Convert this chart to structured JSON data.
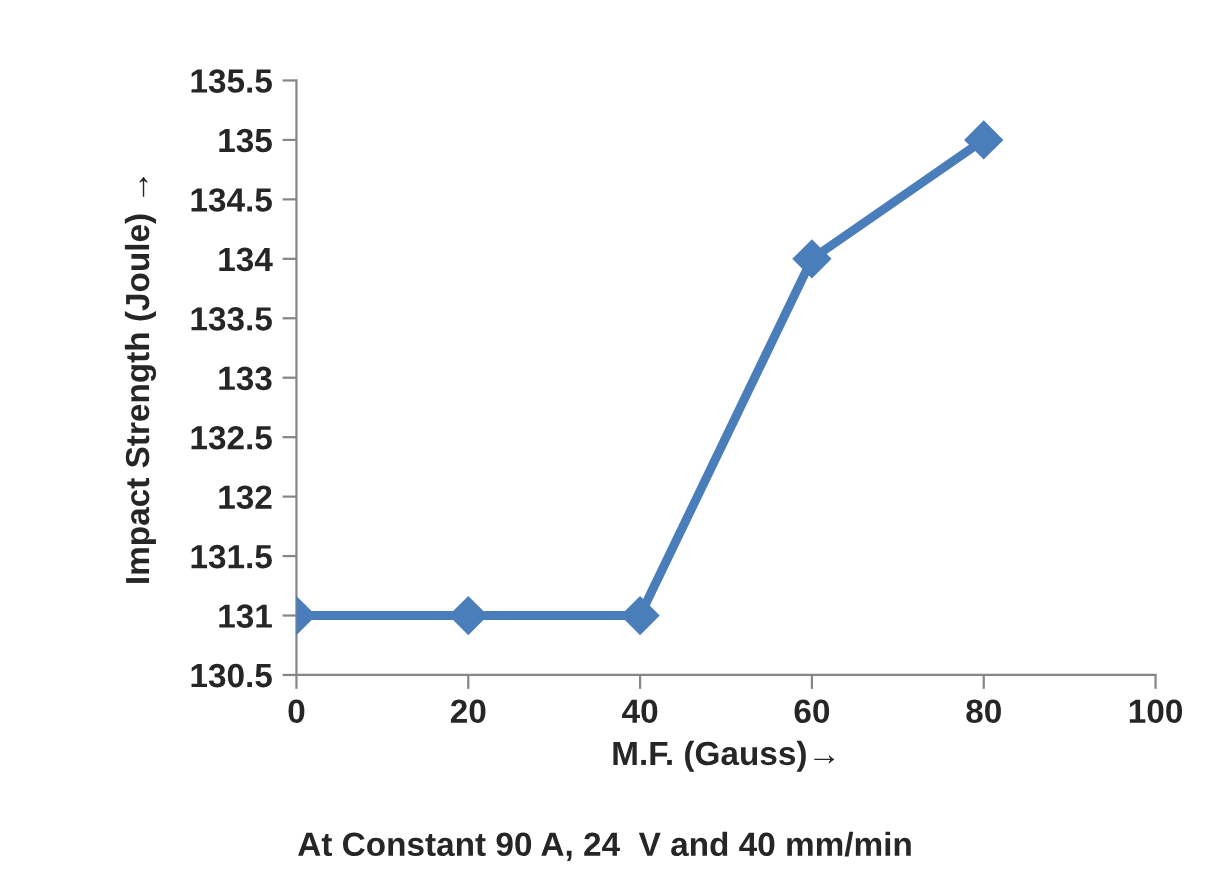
{
  "chart_data": {
    "type": "line",
    "xlabel": "M.F. (Gauss)→",
    "ylabel": "Impact Strength (Joule) →",
    "x": [
      0,
      20,
      40,
      60,
      80
    ],
    "series": [
      {
        "color": "#4a7ebb",
        "values": [
          131,
          131,
          131,
          134,
          135
        ]
      }
    ],
    "xlim": [
      0,
      100
    ],
    "xticks": [
      0,
      20,
      40,
      60,
      80,
      100
    ],
    "ylim": [
      130.5,
      135.5
    ],
    "yticks": [
      130.5,
      131,
      131.5,
      132,
      132.5,
      133,
      133.5,
      134,
      134.5,
      135,
      135.5
    ],
    "marker": "diamond",
    "line_style": "solid",
    "grid": false,
    "legend": false,
    "annotations": [
      "At Constant 90 A, 24  V and 40 mm/min"
    ]
  }
}
